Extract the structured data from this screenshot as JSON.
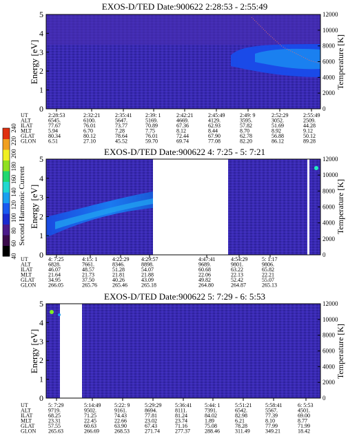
{
  "colorbar": {
    "label": "Second Harmonic Current",
    "ticks": [
      "40",
      "60",
      "80",
      "100",
      "120",
      "140",
      "160",
      "180",
      "200",
      "220",
      "240"
    ],
    "colors": [
      "#000000",
      "#3a0a4a",
      "#4b1a8a",
      "#1a2ad0",
      "#1a5af0",
      "#1aa0f0",
      "#20d8d0",
      "#20d870",
      "#90e020",
      "#f0f020",
      "#f0a020",
      "#e03010"
    ]
  },
  "row_labels": [
    "UT",
    "ALT",
    "ILAT",
    "MLT",
    "GLAT",
    "GLON"
  ],
  "chart_data": [
    {
      "type": "heatmap",
      "title": "EXOS-D/TED   Date:900622   2:28:53 - 2:55:49",
      "ylabel": "Energy [eV]",
      "y2label": "Temperature [K]",
      "ylim": [
        0,
        5
      ],
      "y2lim": [
        0,
        12000
      ],
      "yticks": [
        "0",
        "1",
        "2",
        "3",
        "4",
        "5"
      ],
      "y2ticks": [
        "0",
        "2000",
        "4000",
        "6000",
        "8000",
        "10000",
        "12000"
      ],
      "table": [
        [
          "2:28:53",
          "2:32:21",
          "2:35:41",
          "2:39: 1",
          "2:42:21",
          "2:45:49",
          "2:49: 9",
          "2:52:29",
          "2:55:49"
        ],
        [
          "6545.",
          "6100.",
          "5647.",
          "5169.",
          "4669.",
          "4129.",
          "3595.",
          "3052.",
          "2509."
        ],
        [
          "77.67",
          "76.01",
          "73.77",
          "70.89",
          "67.36",
          "62.93",
          "57.82",
          "51.69",
          "44.28"
        ],
        [
          "5.94",
          "6.70",
          "7.28",
          "7.75",
          "8.12",
          "8.44",
          "8.70",
          "8.92",
          "9.12"
        ],
        [
          "80.34",
          "80.12",
          "78.64",
          "76.01",
          "72.44",
          "67.90",
          "62.78",
          "56.88",
          "50.12"
        ],
        [
          "6.51",
          "27.10",
          "45.52",
          "59.70",
          "69.74",
          "77.08",
          "82.20",
          "86.12",
          "89.28"
        ]
      ]
    },
    {
      "type": "heatmap",
      "title": "EXOS-D/TED   Date:900622   4: 7:25 - 5: 7:21",
      "ylabel": "Energy [eV]",
      "y2label": "Temperature [K]",
      "ylim": [
        0,
        5
      ],
      "y2lim": [
        0,
        12000
      ],
      "yticks": [
        "0",
        "1",
        "2",
        "3",
        "4",
        "5"
      ],
      "y2ticks": [
        "0",
        "2000",
        "4000",
        "6000",
        "8000",
        "10000",
        "12000"
      ],
      "table": [
        [
          "4: 7:25",
          "4:15: 1",
          "4:22:29",
          "4:29:57",
          "",
          "4:47:41",
          "4:54:29",
          "5: 1:17"
        ],
        [
          "6828.",
          "7661.",
          "8346.",
          "8898.",
          "",
          "9689.",
          "9801.",
          "9806."
        ],
        [
          "46.07",
          "48.57",
          "51.28",
          "54.07",
          "",
          "60.68",
          "63.22",
          "65.82"
        ],
        [
          "21.64",
          "21.73",
          "21.81",
          "21.88",
          "",
          "22.06",
          "22.13",
          "22.21"
        ],
        [
          "34.95",
          "37.50",
          "40.26",
          "43.09",
          "",
          "49.82",
          "52.42",
          "55.07"
        ],
        [
          "266.05",
          "265.76",
          "265.46",
          "265.18",
          "",
          "264.80",
          "264.87",
          "265.13"
        ]
      ]
    },
    {
      "type": "heatmap",
      "title": "EXOS-D/TED   Date:900622   5: 7:29 - 6: 5:53",
      "ylabel": "Energy [eV]",
      "y2label": "Temperature [K]",
      "ylim": [
        0,
        5
      ],
      "y2lim": [
        0,
        12000
      ],
      "yticks": [
        "0",
        "1",
        "2",
        "3",
        "4",
        "5"
      ],
      "y2ticks": [
        "0",
        "2000",
        "4000",
        "6000",
        "8000",
        "10000",
        "12000"
      ],
      "table": [
        [
          "5: 7:29",
          "5:14:49",
          "5:22: 9",
          "5:29:29",
          "5:36:41",
          "5:44: 1",
          "5:51:21",
          "5:58:41",
          "6: 5:53"
        ],
        [
          "9719.",
          "9502.",
          "9161.",
          "8694.",
          "8111.",
          "7391.",
          "6542.",
          "5567.",
          "4501."
        ],
        [
          "68.25",
          "71.25",
          "74.43",
          "77.81",
          "81.24",
          "84.02",
          "82.98",
          "77.39",
          "69.00"
        ],
        [
          "23.31",
          "22.45",
          "22.66",
          "23.02",
          "23.74",
          "1.89",
          "6.21",
          "8.10",
          "8.77"
        ],
        [
          "57.55",
          "60.63",
          "63.90",
          "67.43",
          "71.16",
          "75.08",
          "78.28",
          "77.99",
          "71.99"
        ],
        [
          "265.63",
          "266.69",
          "268.53",
          "271.74",
          "277.37",
          "288.46",
          "311.49",
          "349.21",
          "18.42"
        ]
      ]
    }
  ]
}
